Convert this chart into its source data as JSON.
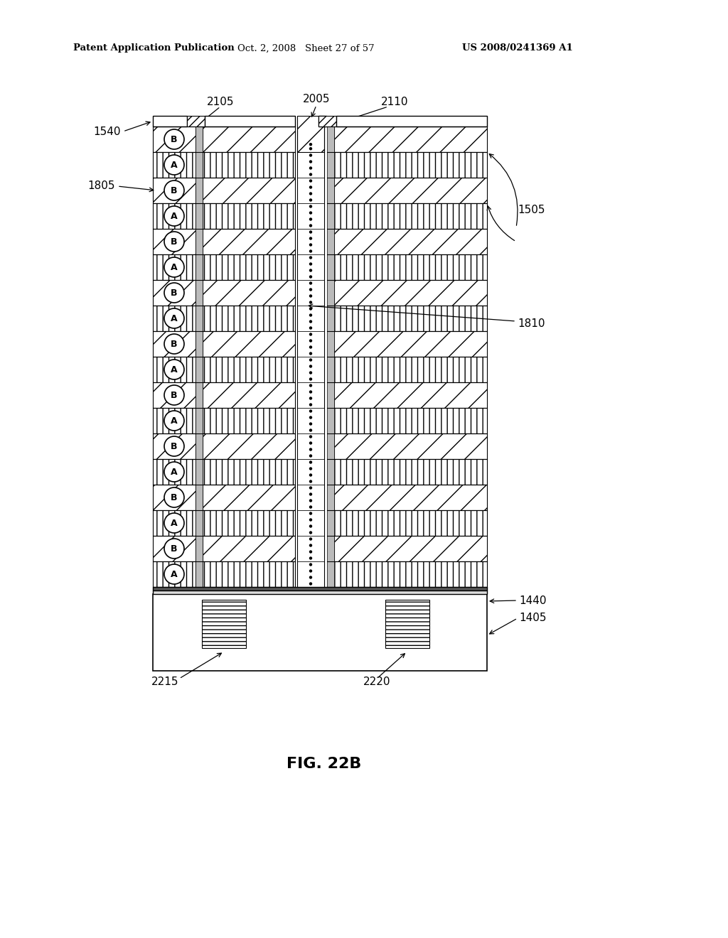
{
  "header_left": "Patent Application Publication",
  "header_mid": "Oct. 2, 2008   Sheet 27 of 57",
  "header_right": "US 2008/0241369 A1",
  "figure_label": "FIG. 22B",
  "bg_color": "#ffffff",
  "line_color": "#000000",
  "num_rows": 18,
  "top_label_nums": [
    "2105",
    "2005",
    "2110"
  ],
  "side_labels": [
    "1540",
    "1805",
    "1505",
    "1810",
    "1440",
    "1405",
    "2215",
    "2220"
  ]
}
